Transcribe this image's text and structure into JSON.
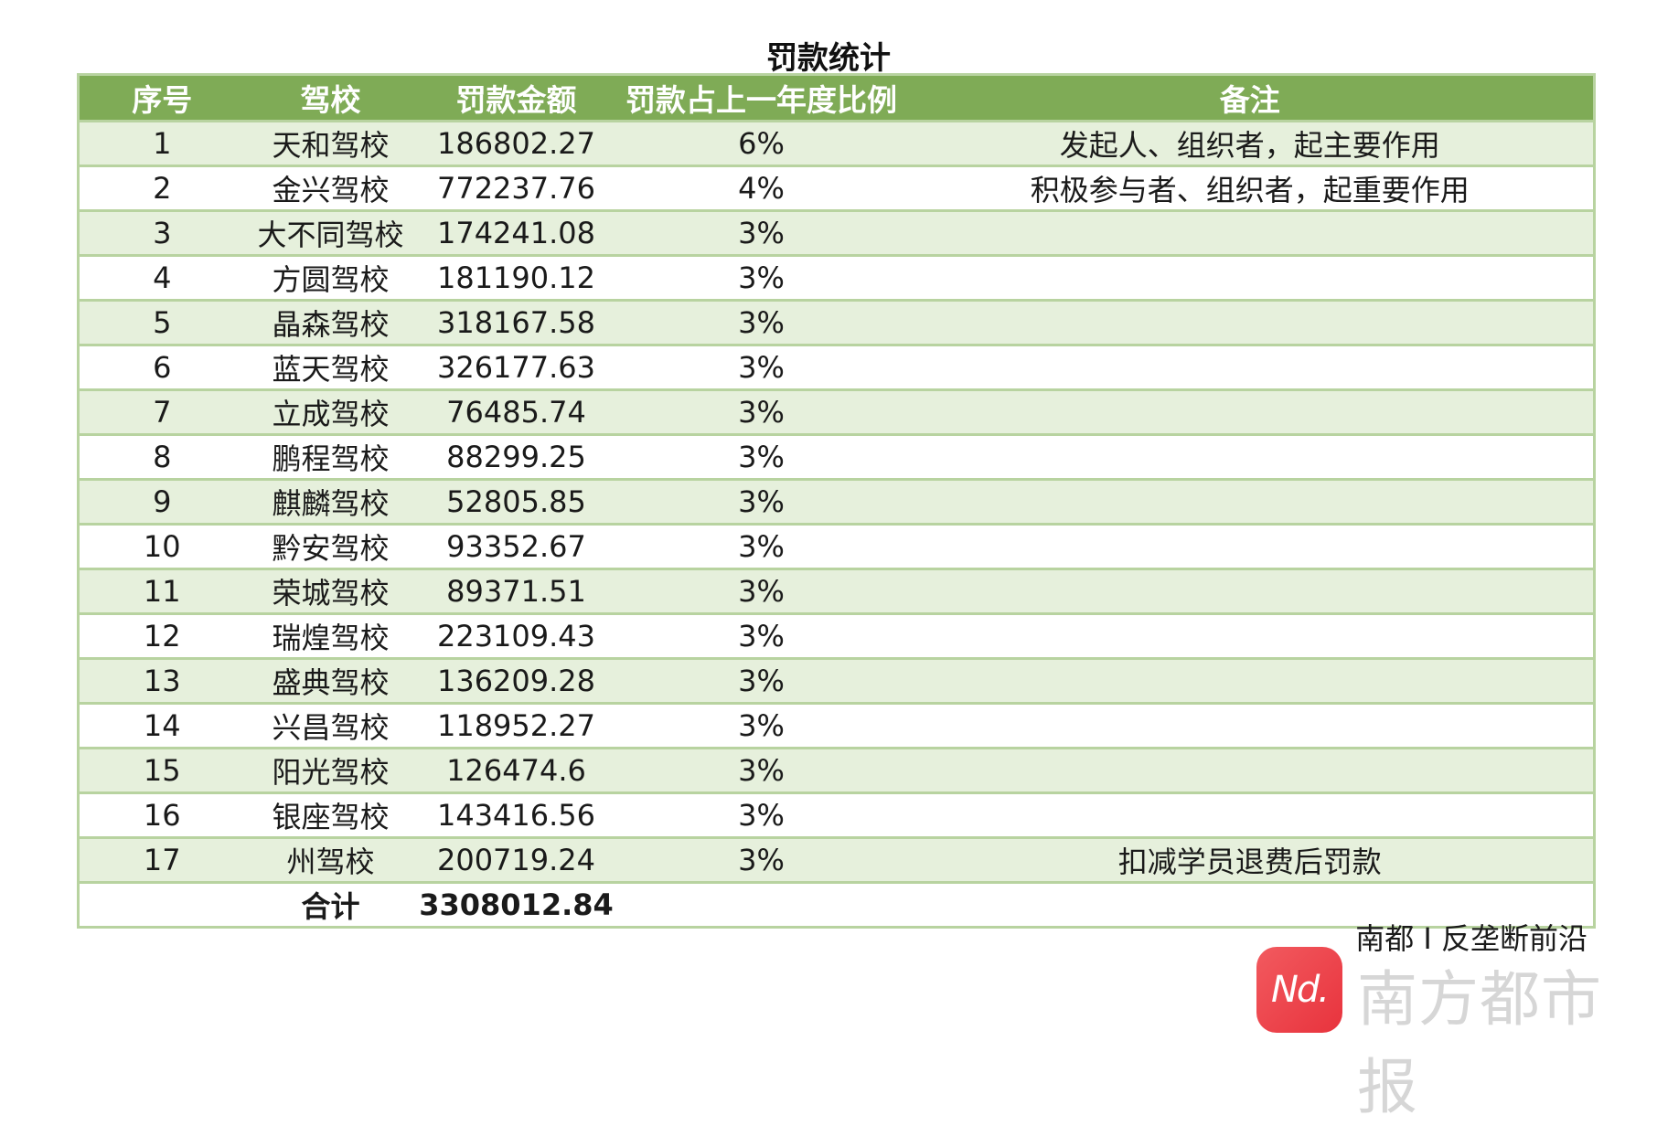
{
  "title": "罚款统计",
  "headers": [
    "序号",
    "驾校",
    "罚款金额",
    "罚款占上一年度比例",
    "备注"
  ],
  "rows": [
    {
      "no": "1",
      "school": "天和驾校",
      "amount": "186802.27",
      "ratio": "6%",
      "note": "发起人、组织者，起主要作用"
    },
    {
      "no": "2",
      "school": "金兴驾校",
      "amount": "772237.76",
      "ratio": "4%",
      "note": "积极参与者、组织者，起重要作用"
    },
    {
      "no": "3",
      "school": "大不同驾校",
      "amount": "174241.08",
      "ratio": "3%",
      "note": ""
    },
    {
      "no": "4",
      "school": "方圆驾校",
      "amount": "181190.12",
      "ratio": "3%",
      "note": ""
    },
    {
      "no": "5",
      "school": "晶森驾校",
      "amount": "318167.58",
      "ratio": "3%",
      "note": ""
    },
    {
      "no": "6",
      "school": "蓝天驾校",
      "amount": "326177.63",
      "ratio": "3%",
      "note": ""
    },
    {
      "no": "7",
      "school": "立成驾校",
      "amount": "76485.74",
      "ratio": "3%",
      "note": ""
    },
    {
      "no": "8",
      "school": "鹏程驾校",
      "amount": "88299.25",
      "ratio": "3%",
      "note": ""
    },
    {
      "no": "9",
      "school": "麒麟驾校",
      "amount": "52805.85",
      "ratio": "3%",
      "note": ""
    },
    {
      "no": "10",
      "school": "黔安驾校",
      "amount": "93352.67",
      "ratio": "3%",
      "note": ""
    },
    {
      "no": "11",
      "school": "荣城驾校",
      "amount": "89371.51",
      "ratio": "3%",
      "note": ""
    },
    {
      "no": "12",
      "school": "瑞煌驾校",
      "amount": "223109.43",
      "ratio": "3%",
      "note": ""
    },
    {
      "no": "13",
      "school": "盛典驾校",
      "amount": "136209.28",
      "ratio": "3%",
      "note": ""
    },
    {
      "no": "14",
      "school": "兴昌驾校",
      "amount": "118952.27",
      "ratio": "3%",
      "note": ""
    },
    {
      "no": "15",
      "school": "阳光驾校",
      "amount": "126474.6",
      "ratio": "3%",
      "note": ""
    },
    {
      "no": "16",
      "school": "银座驾校",
      "amount": "143416.56",
      "ratio": "3%",
      "note": ""
    },
    {
      "no": "17",
      "school": "州驾校",
      "amount": "200719.24",
      "ratio": "3%",
      "note": "扣减学员退费后罚款"
    }
  ],
  "total": {
    "label": "合计",
    "amount": "3308012.84"
  },
  "credit": "南都 I 反垄断前沿",
  "logo": {
    "icon": "nd-logo-icon",
    "text": "Nd.",
    "brand": "南方都市报"
  },
  "colors": {
    "header_bg": "#7fab56",
    "stripe": "#e6f0dc",
    "border": "#b8d3a0",
    "logo": "#e8333d"
  }
}
